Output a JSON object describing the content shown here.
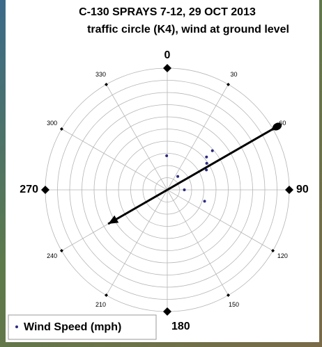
{
  "chart_data": {
    "type": "polar-scatter",
    "title": "C-130 SPRAYS 7-12, 29 OCT 2013",
    "subtitle": "traffic circle (K4), wind at ground level",
    "rlim": [
      0,
      10
    ],
    "rticks": [
      1,
      2,
      3,
      4,
      5,
      6,
      7,
      8,
      9,
      10
    ],
    "thetaticks": [
      0,
      30,
      60,
      90,
      120,
      150,
      180,
      210,
      240,
      270,
      300,
      330
    ],
    "series": [
      {
        "name": "Wind Speed (mph)",
        "color": "#2b2b80",
        "theta": [
          359,
          38,
          90,
          50,
          49,
          56,
          63,
          107
        ],
        "values": [
          2.8,
          1.4,
          1.4,
          4.2,
          4.9,
          3.9,
          3.6,
          3.2
        ]
      }
    ],
    "wind_arrow": {
      "theta": 60,
      "r_tail": 10.4,
      "r_head": 5.6,
      "color": "#000000"
    },
    "legend": "lower left",
    "grid": true
  }
}
